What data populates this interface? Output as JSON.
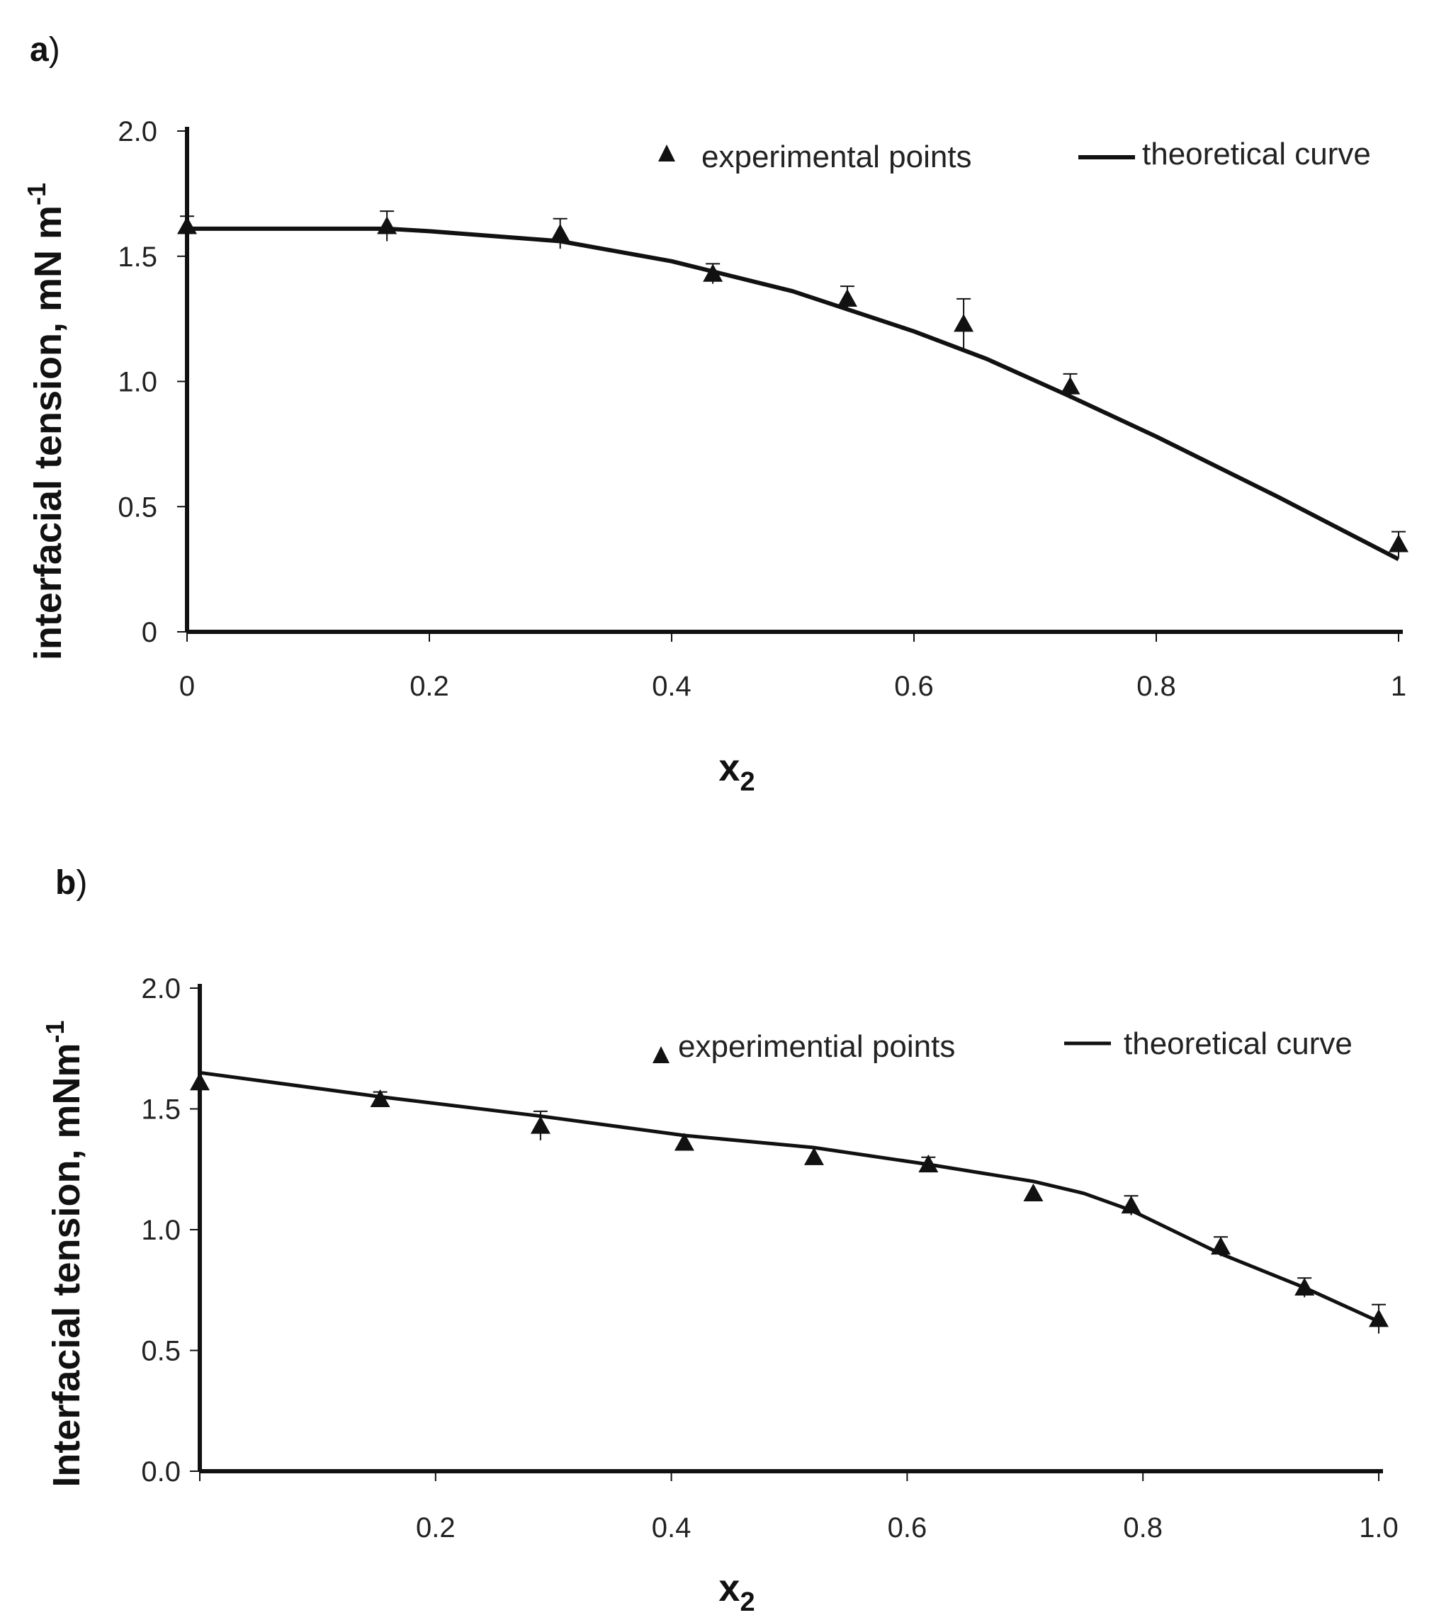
{
  "chart_data": [
    {
      "type": "line",
      "panel_label": "a",
      "panel_paren": ")",
      "xlabel": "x",
      "xlabel_sub": "2",
      "ylabel": "interfacial tension, mN m",
      "ylabel_sup": "-1",
      "xlim": [
        0,
        1
      ],
      "ylim": [
        0,
        2
      ],
      "xticks": [
        0,
        0.2,
        0.4,
        0.6,
        0.8,
        1
      ],
      "xtick_labels": [
        "0",
        "0.2",
        "0.4",
        "0.6",
        "0.8",
        "1"
      ],
      "yticks": [
        0,
        0.5,
        1.0,
        1.5,
        2.0
      ],
      "ytick_labels": [
        "0",
        "0.5",
        "1.0",
        "1.5",
        "2.0"
      ],
      "legend": {
        "points_label": "experimental points",
        "curve_label": "theoretical curve",
        "position": "top-right"
      },
      "experimental_points": {
        "x": [
          0,
          0.165,
          0.308,
          0.434,
          0.545,
          0.641,
          0.729,
          1.0
        ],
        "y": [
          1.62,
          1.62,
          1.59,
          1.43,
          1.33,
          1.23,
          0.98,
          0.35
        ],
        "error": [
          0.04,
          0.06,
          0.06,
          0.04,
          0.05,
          0.1,
          0.05,
          0.05
        ]
      },
      "theoretical_curve": {
        "x": [
          0,
          0.165,
          0.2,
          0.308,
          0.4,
          0.5,
          0.6,
          0.66,
          0.729,
          0.8,
          0.9,
          1.0
        ],
        "y": [
          1.61,
          1.61,
          1.6,
          1.56,
          1.48,
          1.36,
          1.2,
          1.09,
          0.94,
          0.78,
          0.54,
          0.29
        ]
      }
    },
    {
      "type": "line",
      "panel_label": "b",
      "panel_paren": ")",
      "xlabel": "x",
      "xlabel_sub": "2",
      "ylabel": "Interfacial tension, mNm",
      "ylabel_sup": "-1",
      "xlim": [
        0,
        1
      ],
      "ylim": [
        0,
        2
      ],
      "xticks": [
        0,
        0.2,
        0.4,
        0.6,
        0.8,
        1.0
      ],
      "xtick_labels": [
        "",
        "0.2",
        "0.4",
        "0.6",
        "0.8",
        "1.0"
      ],
      "yticks": [
        0,
        0.5,
        1.0,
        1.5,
        2.0
      ],
      "ytick_labels": [
        "0.0",
        "0.5",
        "1.0",
        "1.5",
        "2.0"
      ],
      "legend": {
        "points_label": "experimential points",
        "curve_label": "theoretical curve",
        "position": "top-right"
      },
      "experimental_points": {
        "x": [
          0,
          0.153,
          0.289,
          0.411,
          0.521,
          0.618,
          0.707,
          0.79,
          0.866,
          0.937,
          1.0
        ],
        "y": [
          1.61,
          1.54,
          1.43,
          1.36,
          1.3,
          1.27,
          1.15,
          1.1,
          0.93,
          0.76,
          0.63
        ],
        "error": [
          0.0,
          0.03,
          0.06,
          0.0,
          0.0,
          0.03,
          0.0,
          0.04,
          0.04,
          0.04,
          0.06
        ]
      },
      "theoretical_curve": {
        "x": [
          0,
          0.153,
          0.289,
          0.411,
          0.521,
          0.618,
          0.707,
          0.75,
          0.79,
          0.866,
          0.937,
          1.0
        ],
        "y": [
          1.65,
          1.55,
          1.47,
          1.39,
          1.34,
          1.27,
          1.2,
          1.15,
          1.08,
          0.9,
          0.76,
          0.62
        ]
      }
    }
  ]
}
